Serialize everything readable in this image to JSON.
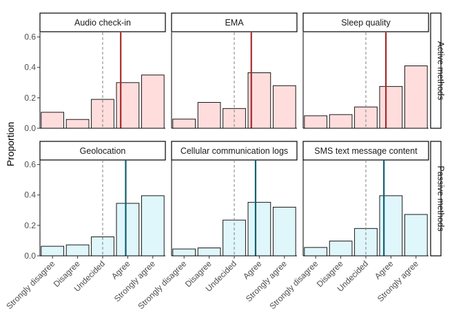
{
  "chart_data": {
    "type": "bar",
    "ylabel": "Proportion",
    "ylim": [
      0,
      0.63
    ],
    "yticks": [
      "0.0",
      "0.2",
      "0.4",
      "0.6"
    ],
    "categories": [
      "Strongly disagree",
      "Disagree",
      "Undecided",
      "Agree",
      "Strongly agree"
    ],
    "grid": false,
    "reference_line_x": "Undecided",
    "rows": [
      {
        "label": "Active methods",
        "fill": "#ffdddd",
        "line_color": "#a52a2a",
        "panels": [
          {
            "title": "Audio check-in",
            "values": [
              0.105,
              0.058,
              0.19,
              0.3,
              0.35
            ],
            "mean_position": 3.72
          },
          {
            "title": "EMA",
            "values": [
              0.06,
              0.17,
              0.13,
              0.365,
              0.28
            ],
            "mean_position": 3.68
          },
          {
            "title": "Sleep quality",
            "values": [
              0.082,
              0.09,
              0.14,
              0.275,
              0.41
            ],
            "mean_position": 3.8
          }
        ]
      },
      {
        "label": "Passive methods",
        "fill": "#dff6fb",
        "line_color": "#0b5f73",
        "panels": [
          {
            "title": "Geolocation",
            "values": [
              0.063,
              0.072,
              0.125,
              0.345,
              0.395
            ],
            "mean_position": 3.92
          },
          {
            "title": "Cellular communication logs",
            "values": [
              0.045,
              0.052,
              0.235,
              0.352,
              0.32
            ],
            "mean_position": 3.85
          },
          {
            "title": "SMS text message content",
            "values": [
              0.055,
              0.097,
              0.18,
              0.395,
              0.272
            ],
            "mean_position": 3.72
          }
        ]
      }
    ]
  }
}
